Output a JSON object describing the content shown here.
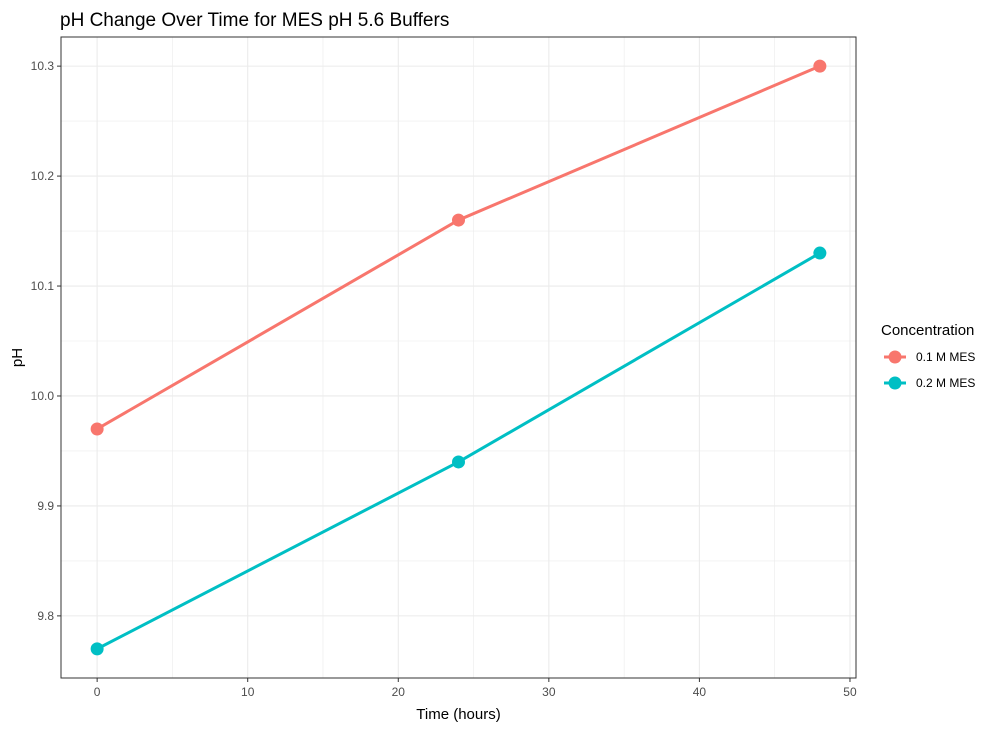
{
  "chart_data": {
    "type": "line",
    "title": "pH Change Over Time for MES pH 5.6 Buffers",
    "xlabel": "Time (hours)",
    "ylabel": "pH",
    "xlim": [
      -2.4,
      50.4
    ],
    "ylim": [
      9.7435,
      10.3265
    ],
    "x_ticks": [
      0,
      10,
      20,
      30,
      40,
      50
    ],
    "x_tick_labels": [
      "0",
      "10",
      "20",
      "30",
      "40",
      "50"
    ],
    "y_ticks": [
      9.8,
      9.9,
      10.0,
      10.1,
      10.2,
      10.3
    ],
    "y_tick_labels": [
      "9.8",
      "9.9",
      "10.0",
      "10.1",
      "10.2",
      "10.3"
    ],
    "grid": true,
    "legend": {
      "title": "Concentration",
      "placement": "right"
    },
    "series": [
      {
        "name": "0.1 M MES",
        "color": "#F8766D",
        "x": [
          0,
          24,
          48
        ],
        "y": [
          9.97,
          10.16,
          10.3
        ]
      },
      {
        "name": "0.2 M MES",
        "color": "#00BFC4",
        "x": [
          0,
          24,
          48
        ],
        "y": [
          9.77,
          9.94,
          10.13
        ]
      }
    ]
  }
}
